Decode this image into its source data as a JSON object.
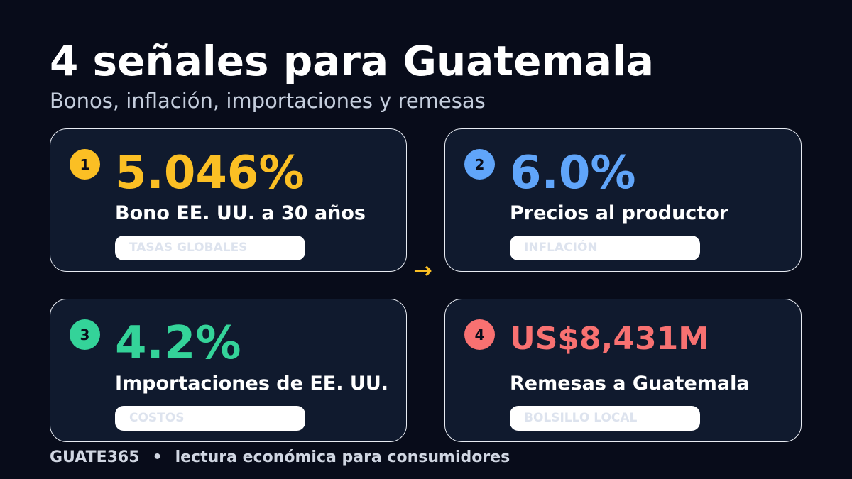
{
  "header": {
    "title": "4 señales para Guatemala",
    "subtitle": "Bonos, inflación, importaciones y remesas"
  },
  "cards": [
    {
      "number": "1",
      "value": "5.046%",
      "label": "Bono EE. UU. a 30 años",
      "tag": "TASAS GLOBALES",
      "color": "#fbbf24"
    },
    {
      "number": "2",
      "value": "6.0%",
      "label": "Precios al productor",
      "tag": "INFLACIÓN",
      "color": "#60a5fa"
    },
    {
      "number": "3",
      "value": "4.2%",
      "label": "Importaciones de EE. UU.",
      "tag": "COSTOS",
      "color": "#34d399"
    },
    {
      "number": "4",
      "value": "US$8,431M",
      "label": "Remesas a Guatemala",
      "tag": "BOLSILLO LOCAL",
      "color": "#f87171"
    }
  ],
  "footer": {
    "brand": "GUATE365",
    "separator": "•",
    "tagline": "lectura económica para consumidores"
  }
}
